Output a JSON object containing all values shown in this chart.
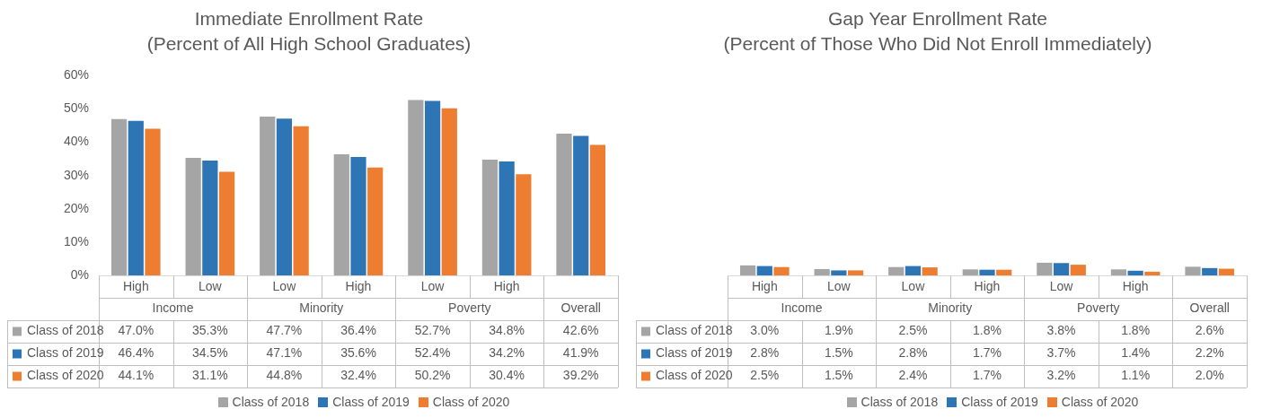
{
  "chart_data": [
    {
      "type": "bar",
      "title": "Immediate Enrollment Rate",
      "subtitle": "(Percent of All High School Graduates)",
      "categories": [
        "High",
        "Low",
        "Low",
        "High",
        "Low",
        "High",
        null
      ],
      "annotations": [
        "Income",
        "Minority",
        "Poverty",
        "Overall"
      ],
      "ylim": [
        0,
        60
      ],
      "yticks": [
        {
          "value": 0,
          "label": "0%"
        },
        {
          "value": 10,
          "label": "10%"
        },
        {
          "value": 20,
          "label": "20%"
        },
        {
          "value": 30,
          "label": "30%"
        },
        {
          "value": 40,
          "label": "40%"
        },
        {
          "value": 50,
          "label": "50%"
        },
        {
          "value": 60,
          "label": "60%"
        }
      ],
      "grid": false,
      "legend": "bottom",
      "series": [
        {
          "name": "Class of 2018",
          "color": "#a5a5a5",
          "values": [
            47.0,
            35.3,
            47.7,
            36.4,
            52.7,
            34.8,
            42.6
          ],
          "value_labels": [
            "47.0%",
            "35.3%",
            "47.7%",
            "36.4%",
            "52.7%",
            "34.8%",
            "42.6%"
          ]
        },
        {
          "name": "Class of 2019",
          "color": "#2e75b6",
          "values": [
            46.4,
            34.5,
            47.1,
            35.6,
            52.4,
            34.2,
            41.9
          ],
          "value_labels": [
            "46.4%",
            "34.5%",
            "47.1%",
            "35.6%",
            "52.4%",
            "34.2%",
            "41.9%"
          ]
        },
        {
          "name": "Class of 2020",
          "color": "#ed7d31",
          "values": [
            44.1,
            31.1,
            44.8,
            32.4,
            50.2,
            30.4,
            39.2
          ],
          "value_labels": [
            "44.1%",
            "31.1%",
            "44.8%",
            "32.4%",
            "50.2%",
            "30.4%",
            "39.2%"
          ]
        }
      ]
    },
    {
      "type": "bar",
      "title": "Gap Year Enrollment Rate",
      "subtitle": "(Percent of Those Who Did Not Enroll Immediately)",
      "categories": [
        "High",
        "Low",
        "Low",
        "High",
        "Low",
        "High",
        null
      ],
      "annotations": [
        "Income",
        "Minority",
        "Poverty",
        "Overall"
      ],
      "ylim": [
        0,
        60
      ],
      "tick_labels": "x",
      "grid": false,
      "legend": "bottom",
      "series": [
        {
          "name": "Class of 2018",
          "color": "#a5a5a5",
          "values": [
            3.0,
            1.9,
            2.5,
            1.8,
            3.8,
            1.8,
            2.6
          ],
          "value_labels": [
            "3.0%",
            "1.9%",
            "2.5%",
            "1.8%",
            "3.8%",
            "1.8%",
            "2.6%"
          ]
        },
        {
          "name": "Class of 2019",
          "color": "#2e75b6",
          "values": [
            2.8,
            1.5,
            2.8,
            1.7,
            3.7,
            1.4,
            2.2
          ],
          "value_labels": [
            "2.8%",
            "1.5%",
            "2.8%",
            "1.7%",
            "3.7%",
            "1.4%",
            "2.2%"
          ]
        },
        {
          "name": "Class of 2020",
          "color": "#ed7d31",
          "values": [
            2.5,
            1.5,
            2.4,
            1.7,
            3.2,
            1.1,
            2.0
          ],
          "value_labels": [
            "2.5%",
            "1.5%",
            "2.4%",
            "1.7%",
            "3.2%",
            "1.1%",
            "2.0%"
          ]
        }
      ]
    }
  ]
}
